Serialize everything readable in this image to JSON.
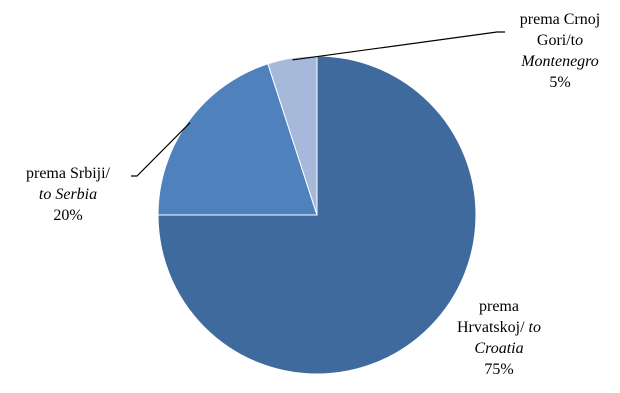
{
  "chart_data": {
    "type": "pie",
    "slices": [
      {
        "key": "croatia",
        "label_line1_plain": "prema",
        "label_line2_plain": "Hrvatskoj/",
        "label_line2_italic": " to",
        "label_line3_italic": "Croatia",
        "value_text": "75%",
        "value": 75,
        "color": "#3e6a9e"
      },
      {
        "key": "serbia",
        "label_line1_plain": "prema Srbiji/",
        "label_line2_italic": "to Serbia",
        "value_text": "20%",
        "value": 20,
        "color": "#4f81bd"
      },
      {
        "key": "montenegro",
        "label_line1_plain": "prema Crnoj",
        "label_line2_plain": "Gori/t",
        "label_line2_italic": "o",
        "label_line3_italic": "Montenegro",
        "value_text": "5%",
        "value": 5,
        "color": "#a6b9db"
      }
    ]
  }
}
